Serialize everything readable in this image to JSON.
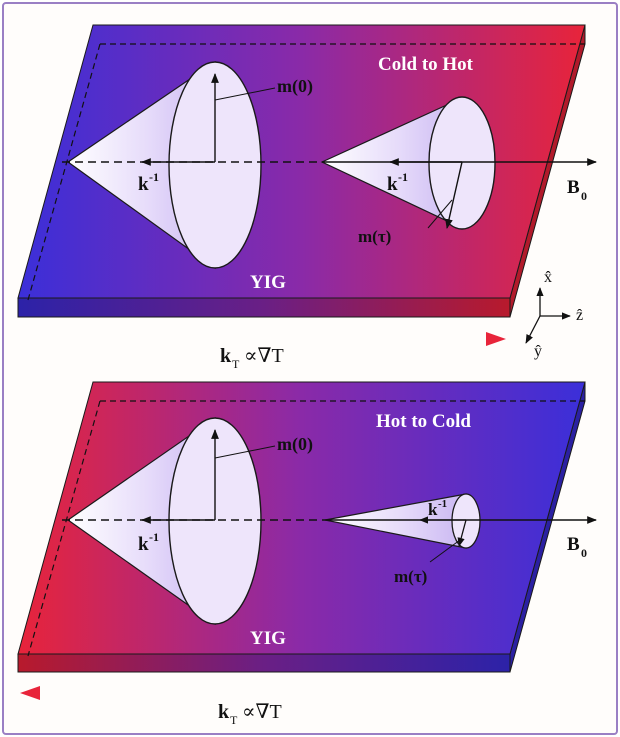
{
  "panels": [
    {
      "id": "top",
      "title": "Cold to Hot",
      "material": "YIG",
      "m0_label": "m(0)",
      "mtau_label": "m(τ)",
      "k_inverse_left": "k",
      "k_inverse_right": "k",
      "k_exponent": "-1",
      "field_label": "B",
      "field_subscript": "0",
      "gradient_label_k": "k",
      "gradient_label_sub": "T",
      "gradient_label_rest": "∝∇T",
      "gradient_arrow_direction": "right",
      "slab_gradient": {
        "left": "#3b2fd9",
        "right": "#e8243a"
      }
    },
    {
      "id": "bottom",
      "title": "Hot to Cold",
      "material": "YIG",
      "m0_label": "m(0)",
      "mtau_label": "m(τ)",
      "k_inverse_left": "k",
      "k_inverse_right": "k",
      "k_exponent": "-1",
      "field_label": "B",
      "field_subscript": "0",
      "gradient_label_k": "k",
      "gradient_label_sub": "T",
      "gradient_label_rest": "∝∇T",
      "gradient_arrow_direction": "left",
      "slab_gradient": {
        "left": "#e8243a",
        "right": "#3b2fd9"
      }
    }
  ],
  "axes": {
    "x": "x̂",
    "z": "ẑ",
    "y": "ŷ"
  },
  "colors": {
    "blue": "#3b2fd9",
    "red": "#e8243a",
    "cone": "#f3ecfd",
    "frame": "#9a7fc4"
  }
}
